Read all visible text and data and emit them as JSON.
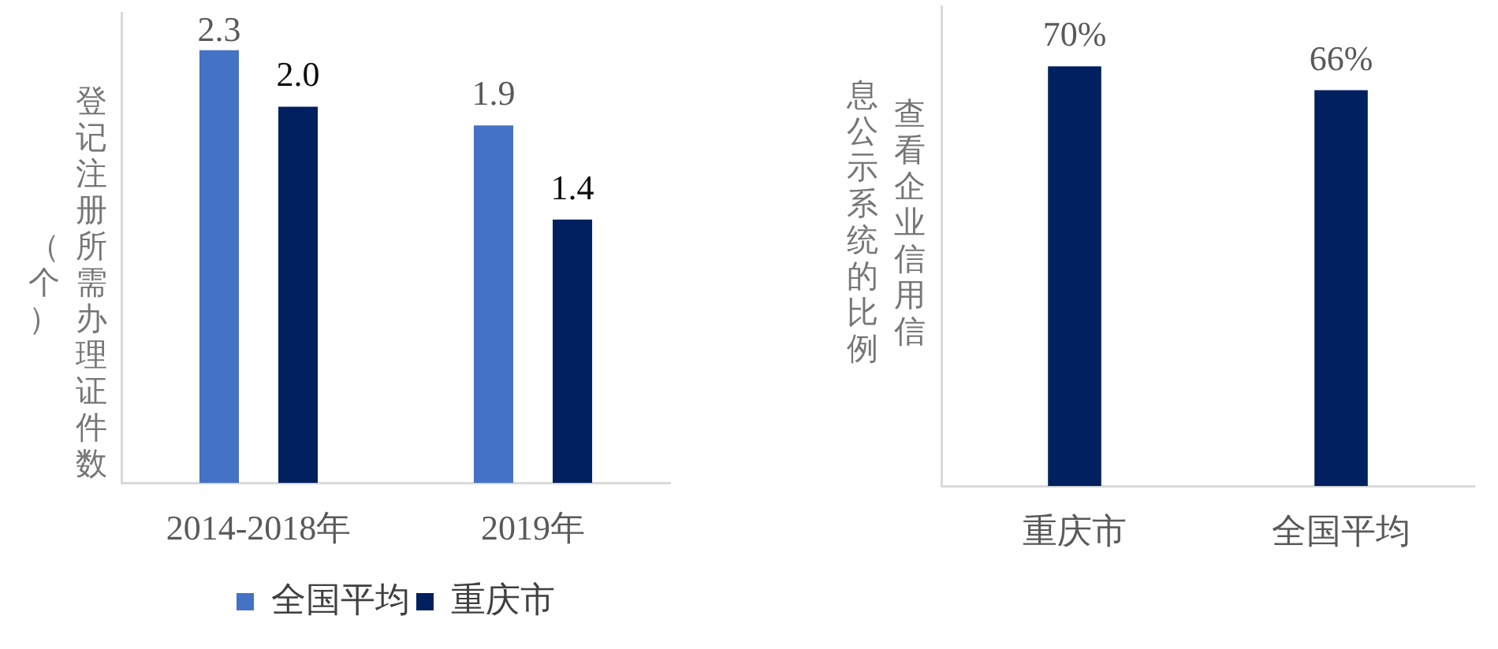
{
  "chart_data": [
    {
      "type": "bar",
      "ylabel": "登记注册所需办理证件数（个）",
      "categories": [
        "2014-2018年",
        "2019年"
      ],
      "series": [
        {
          "name": "全国平均",
          "color": "#4472c4",
          "values": [
            2.3,
            1.9
          ],
          "value_labels": [
            "2.3",
            "1.9"
          ]
        },
        {
          "name": "重庆市",
          "color": "#002060",
          "values": [
            2.0,
            1.4
          ],
          "value_labels": [
            "2.0",
            "1.4"
          ]
        }
      ],
      "ylim": [
        0,
        2.5
      ],
      "tick_labels": "x",
      "legend": "bottom"
    },
    {
      "type": "bar",
      "ylabel": "查看企业信用信息公示系统的比例",
      "categories": [
        "重庆市",
        "全国平均"
      ],
      "values": [
        70,
        66
      ],
      "color": "#002060",
      "value_labels": [
        "70%",
        "66%"
      ],
      "ylim": [
        0,
        80
      ],
      "tick_labels": "x"
    }
  ]
}
